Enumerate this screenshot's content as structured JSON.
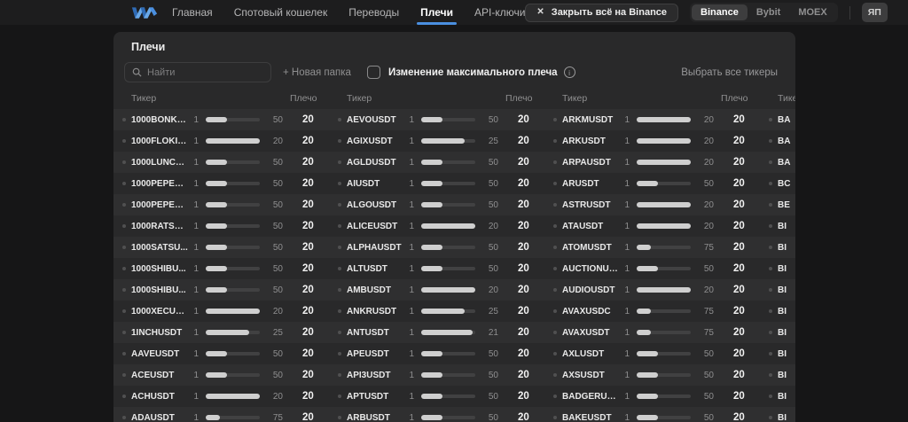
{
  "nav": {
    "items": [
      {
        "label": "Главная",
        "active": false
      },
      {
        "label": "Спотовый кошелек",
        "active": false
      },
      {
        "label": "Переводы",
        "active": false
      },
      {
        "label": "Плечи",
        "active": true
      },
      {
        "label": "API-ключи",
        "active": false
      }
    ],
    "close_all_label": "Закрыть всё на Binance",
    "close_icon": "✕",
    "exchanges": [
      "Binance",
      "Bybit",
      "MOEX"
    ],
    "active_exchange": "Binance",
    "profile_label": "ЯП"
  },
  "panel": {
    "title": "Плечи",
    "search_placeholder": "Найти",
    "new_folder_label": "+ Новая папка",
    "checkbox_label": "Изменение максимального плеча",
    "checkbox_checked": false,
    "info_icon": "i",
    "select_all_label": "Выбрать все тикеры",
    "col_header_ticker": "Тикер",
    "col_header_leverage": "Плечо"
  },
  "table": {
    "rows": [
      [
        {
          "ticker": "1000BONKU...",
          "min": "1",
          "max": "50",
          "leverage": "20"
        },
        {
          "ticker": "AEVOUSDT",
          "min": "1",
          "max": "50",
          "leverage": "20"
        },
        {
          "ticker": "ARKMUSDT",
          "min": "1",
          "max": "20",
          "leverage": "20"
        },
        {
          "ticker": "BA"
        }
      ],
      [
        {
          "ticker": "1000FLOKIU...",
          "min": "1",
          "max": "20",
          "leverage": "20"
        },
        {
          "ticker": "AGIXUSDT",
          "min": "1",
          "max": "25",
          "leverage": "20"
        },
        {
          "ticker": "ARKUSDT",
          "min": "1",
          "max": "20",
          "leverage": "20"
        },
        {
          "ticker": "BA"
        }
      ],
      [
        {
          "ticker": "1000LUNCU...",
          "min": "1",
          "max": "50",
          "leverage": "20"
        },
        {
          "ticker": "AGLDUSDT",
          "min": "1",
          "max": "50",
          "leverage": "20"
        },
        {
          "ticker": "ARPAUSDT",
          "min": "1",
          "max": "20",
          "leverage": "20"
        },
        {
          "ticker": "BA"
        }
      ],
      [
        {
          "ticker": "1000PEPEU...",
          "min": "1",
          "max": "50",
          "leverage": "20"
        },
        {
          "ticker": "AIUSDT",
          "min": "1",
          "max": "50",
          "leverage": "20"
        },
        {
          "ticker": "ARUSDT",
          "min": "1",
          "max": "50",
          "leverage": "20"
        },
        {
          "ticker": "BC"
        }
      ],
      [
        {
          "ticker": "1000PEPEU...",
          "min": "1",
          "max": "50",
          "leverage": "20"
        },
        {
          "ticker": "ALGOUSDT",
          "min": "1",
          "max": "50",
          "leverage": "20"
        },
        {
          "ticker": "ASTRUSDT",
          "min": "1",
          "max": "20",
          "leverage": "20"
        },
        {
          "ticker": "BE"
        }
      ],
      [
        {
          "ticker": "1000RATSU...",
          "min": "1",
          "max": "50",
          "leverage": "20"
        },
        {
          "ticker": "ALICEUSDT",
          "min": "1",
          "max": "20",
          "leverage": "20"
        },
        {
          "ticker": "ATAUSDT",
          "min": "1",
          "max": "20",
          "leverage": "20"
        },
        {
          "ticker": "BI"
        }
      ],
      [
        {
          "ticker": "1000SATSU...",
          "min": "1",
          "max": "50",
          "leverage": "20"
        },
        {
          "ticker": "ALPHAUSDT",
          "min": "1",
          "max": "50",
          "leverage": "20"
        },
        {
          "ticker": "ATOMUSDT",
          "min": "1",
          "max": "75",
          "leverage": "20"
        },
        {
          "ticker": "BI"
        }
      ],
      [
        {
          "ticker": "1000SHIBU...",
          "min": "1",
          "max": "50",
          "leverage": "20"
        },
        {
          "ticker": "ALTUSDT",
          "min": "1",
          "max": "50",
          "leverage": "20"
        },
        {
          "ticker": "AUCTIONUS...",
          "min": "1",
          "max": "50",
          "leverage": "20"
        },
        {
          "ticker": "BI"
        }
      ],
      [
        {
          "ticker": "1000SHIBU...",
          "min": "1",
          "max": "50",
          "leverage": "20"
        },
        {
          "ticker": "AMBUSDT",
          "min": "1",
          "max": "20",
          "leverage": "20"
        },
        {
          "ticker": "AUDIOUSDT",
          "min": "1",
          "max": "20",
          "leverage": "20"
        },
        {
          "ticker": "BI"
        }
      ],
      [
        {
          "ticker": "1000XECUS...",
          "min": "1",
          "max": "20",
          "leverage": "20"
        },
        {
          "ticker": "ANKRUSDT",
          "min": "1",
          "max": "25",
          "leverage": "20"
        },
        {
          "ticker": "AVAXUSDC",
          "min": "1",
          "max": "75",
          "leverage": "20"
        },
        {
          "ticker": "BI"
        }
      ],
      [
        {
          "ticker": "1INCHUSDT",
          "min": "1",
          "max": "25",
          "leverage": "20"
        },
        {
          "ticker": "ANTUSDT",
          "min": "1",
          "max": "21",
          "leverage": "20"
        },
        {
          "ticker": "AVAXUSDT",
          "min": "1",
          "max": "75",
          "leverage": "20"
        },
        {
          "ticker": "BI"
        }
      ],
      [
        {
          "ticker": "AAVEUSDT",
          "min": "1",
          "max": "50",
          "leverage": "20"
        },
        {
          "ticker": "APEUSDT",
          "min": "1",
          "max": "50",
          "leverage": "20"
        },
        {
          "ticker": "AXLUSDT",
          "min": "1",
          "max": "50",
          "leverage": "20"
        },
        {
          "ticker": "BI"
        }
      ],
      [
        {
          "ticker": "ACEUSDT",
          "min": "1",
          "max": "50",
          "leverage": "20"
        },
        {
          "ticker": "API3USDT",
          "min": "1",
          "max": "50",
          "leverage": "20"
        },
        {
          "ticker": "AXSUSDT",
          "min": "1",
          "max": "50",
          "leverage": "20"
        },
        {
          "ticker": "BI"
        }
      ],
      [
        {
          "ticker": "ACHUSDT",
          "min": "1",
          "max": "20",
          "leverage": "20"
        },
        {
          "ticker": "APTUSDT",
          "min": "1",
          "max": "50",
          "leverage": "20"
        },
        {
          "ticker": "BADGERUS...",
          "min": "1",
          "max": "50",
          "leverage": "20"
        },
        {
          "ticker": "BI"
        }
      ],
      [
        {
          "ticker": "ADAUSDT",
          "min": "1",
          "max": "75",
          "leverage": "20"
        },
        {
          "ticker": "ARBUSDT",
          "min": "1",
          "max": "50",
          "leverage": "20"
        },
        {
          "ticker": "BAKEUSDT",
          "min": "1",
          "max": "50",
          "leverage": "20"
        },
        {
          "ticker": "BI"
        }
      ]
    ]
  },
  "colors": {
    "accent": "#4a8fe0",
    "slider_fill": "#cfcfcf",
    "slider_track": "#414142",
    "panel_bg": "#29292a",
    "row_alt": "#2f2f30",
    "logo_blue_light": "#6aa9e8",
    "logo_blue_dark": "#2f6bb5"
  }
}
